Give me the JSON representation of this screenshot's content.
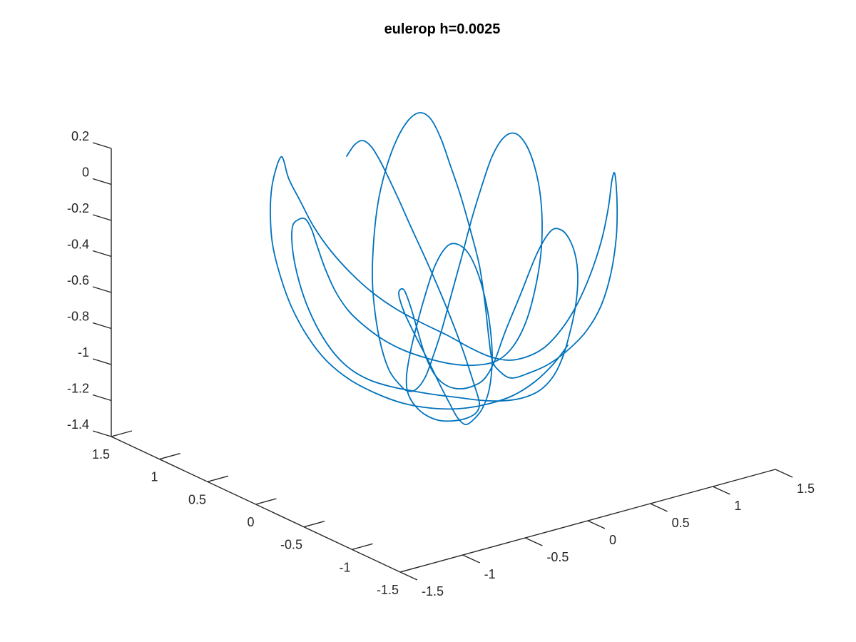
{
  "chart_data": {
    "type": "line",
    "title": "eulerop h=0.0025",
    "xlabel": "",
    "ylabel": "",
    "zlabel": "",
    "grid": false,
    "legend": "none",
    "axes": {
      "z": {
        "range": [
          -1.4,
          0.2
        ],
        "ticks": [
          "0.2",
          "0",
          "-0.2",
          "-0.4",
          "-0.6",
          "-0.8",
          "-1",
          "-1.2",
          "-1.4"
        ]
      },
      "left_axis": {
        "range": [
          -1.5,
          1.5
        ],
        "ticks": [
          "1.5",
          "1",
          "0.5",
          "0",
          "-0.5",
          "-1",
          "-1.5"
        ]
      },
      "right_axis": {
        "range": [
          -1.5,
          1.5
        ],
        "ticks": [
          "-1.5",
          "-1",
          "-0.5",
          "0",
          "0.5",
          "1",
          "1.5"
        ]
      }
    },
    "series": [
      {
        "color": "#0072BD",
        "points": [
          [
            486,
            219
          ],
          [
            497,
            203
          ],
          [
            508,
            197
          ],
          [
            520,
            205
          ],
          [
            532,
            224
          ],
          [
            545,
            250
          ],
          [
            560,
            282
          ],
          [
            576,
            318
          ],
          [
            594,
            357
          ],
          [
            613,
            400
          ],
          [
            632,
            446
          ],
          [
            650,
            494
          ],
          [
            665,
            540
          ],
          [
            672,
            565
          ],
          [
            668,
            578
          ],
          [
            655,
            586
          ],
          [
            635,
            590
          ],
          [
            614,
            589
          ],
          [
            594,
            580
          ],
          [
            579,
            565
          ],
          [
            571,
            548
          ],
          [
            570,
            526
          ],
          [
            575,
            495
          ],
          [
            584,
            457
          ],
          [
            596,
            414
          ],
          [
            610,
            372
          ],
          [
            626,
            346
          ],
          [
            640,
            342
          ],
          [
            655,
            353
          ],
          [
            668,
            378
          ],
          [
            679,
            414
          ],
          [
            687,
            458
          ],
          [
            690,
            503
          ],
          [
            686,
            545
          ],
          [
            676,
            573
          ],
          [
            663,
            589
          ],
          [
            652,
            595
          ],
          [
            641,
            585
          ],
          [
            630,
            565
          ],
          [
            617,
            540
          ],
          [
            601,
            507
          ],
          [
            582,
            470
          ],
          [
            566,
            436
          ],
          [
            559,
            411
          ],
          [
            566,
            406
          ],
          [
            575,
            428
          ],
          [
            585,
            462
          ],
          [
            596,
            498
          ],
          [
            610,
            526
          ],
          [
            627,
            541
          ],
          [
            647,
            545
          ],
          [
            666,
            540
          ],
          [
            680,
            530
          ],
          [
            693,
            507
          ],
          [
            709,
            463
          ],
          [
            730,
            412
          ],
          [
            753,
            355
          ],
          [
            772,
            324
          ],
          [
            786,
            322
          ],
          [
            798,
            335
          ],
          [
            807,
            360
          ],
          [
            810,
            391
          ],
          [
            807,
            428
          ],
          [
            799,
            466
          ],
          [
            789,
            500
          ],
          [
            776,
            527
          ],
          [
            757,
            547
          ],
          [
            732,
            558
          ],
          [
            703,
            562
          ],
          [
            672,
            561
          ],
          [
            640,
            557
          ],
          [
            608,
            553
          ],
          [
            578,
            548
          ],
          [
            548,
            542
          ],
          [
            519,
            533
          ],
          [
            492,
            518
          ],
          [
            469,
            496
          ],
          [
            448,
            465
          ],
          [
            430,
            427
          ],
          [
            417,
            386
          ],
          [
            410,
            348
          ],
          [
            410,
            318
          ],
          [
            418,
            308
          ],
          [
            428,
            307
          ],
          [
            437,
            322
          ],
          [
            445,
            346
          ],
          [
            456,
            377
          ],
          [
            470,
            408
          ],
          [
            488,
            435
          ],
          [
            511,
            457
          ],
          [
            537,
            476
          ],
          [
            566,
            491
          ],
          [
            598,
            502
          ],
          [
            632,
            510
          ],
          [
            665,
            512
          ],
          [
            696,
            506
          ],
          [
            719,
            486
          ],
          [
            737,
            452
          ],
          [
            750,
            406
          ],
          [
            758,
            358
          ],
          [
            760,
            312
          ],
          [
            757,
            270
          ],
          [
            749,
            232
          ],
          [
            737,
            202
          ],
          [
            722,
            187
          ],
          [
            706,
            193
          ],
          [
            690,
            219
          ],
          [
            676,
            259
          ],
          [
            661,
            308
          ],
          [
            647,
            361
          ],
          [
            633,
            412
          ],
          [
            620,
            460
          ],
          [
            607,
            500
          ],
          [
            596,
            529
          ],
          [
            583,
            546
          ],
          [
            571,
            548
          ],
          [
            561,
            540
          ],
          [
            546,
            520
          ],
          [
            534,
            484
          ],
          [
            526,
            440
          ],
          [
            522,
            390
          ],
          [
            524,
            336
          ],
          [
            530,
            284
          ],
          [
            541,
            237
          ],
          [
            556,
            196
          ],
          [
            573,
            168
          ],
          [
            589,
            158
          ],
          [
            604,
            167
          ],
          [
            618,
            194
          ],
          [
            631,
            231
          ],
          [
            645,
            272
          ],
          [
            659,
            321
          ],
          [
            672,
            372
          ],
          [
            680,
            426
          ],
          [
            685,
            471
          ],
          [
            690,
            505
          ],
          [
            700,
            520
          ],
          [
            717,
            530
          ],
          [
            744,
            522
          ],
          [
            770,
            510
          ],
          [
            797,
            490
          ],
          [
            822,
            464
          ],
          [
            842,
            430
          ],
          [
            856,
            385
          ],
          [
            864,
            332
          ],
          [
            865,
            283
          ],
          [
            862,
            244
          ],
          [
            858,
            252
          ],
          [
            853,
            290
          ],
          [
            845,
            330
          ],
          [
            833,
            370
          ],
          [
            818,
            408
          ],
          [
            801,
            441
          ],
          [
            782,
            468
          ],
          [
            762,
            488
          ],
          [
            739,
            500
          ],
          [
            714,
            505
          ],
          [
            687,
            500
          ],
          [
            660,
            488
          ],
          [
            627,
            470
          ],
          [
            590,
            452
          ],
          [
            555,
            433
          ],
          [
            522,
            410
          ],
          [
            492,
            383
          ],
          [
            464,
            352
          ],
          [
            440,
            318
          ],
          [
            421,
            282
          ],
          [
            405,
            251
          ],
          [
            398,
            226
          ],
          [
            394,
            220
          ],
          [
            388,
            233
          ],
          [
            381,
            263
          ],
          [
            379,
            300
          ],
          [
            382,
            342
          ],
          [
            393,
            387
          ],
          [
            409,
            431
          ],
          [
            432,
            473
          ],
          [
            458,
            506
          ],
          [
            490,
            532
          ],
          [
            526,
            551
          ],
          [
            564,
            565
          ],
          [
            603,
            572
          ],
          [
            642,
            573
          ],
          [
            681,
            567
          ],
          [
            718,
            555
          ],
          [
            750,
            535
          ],
          [
            776,
            510
          ],
          [
            796,
            484
          ]
        ]
      }
    ]
  }
}
